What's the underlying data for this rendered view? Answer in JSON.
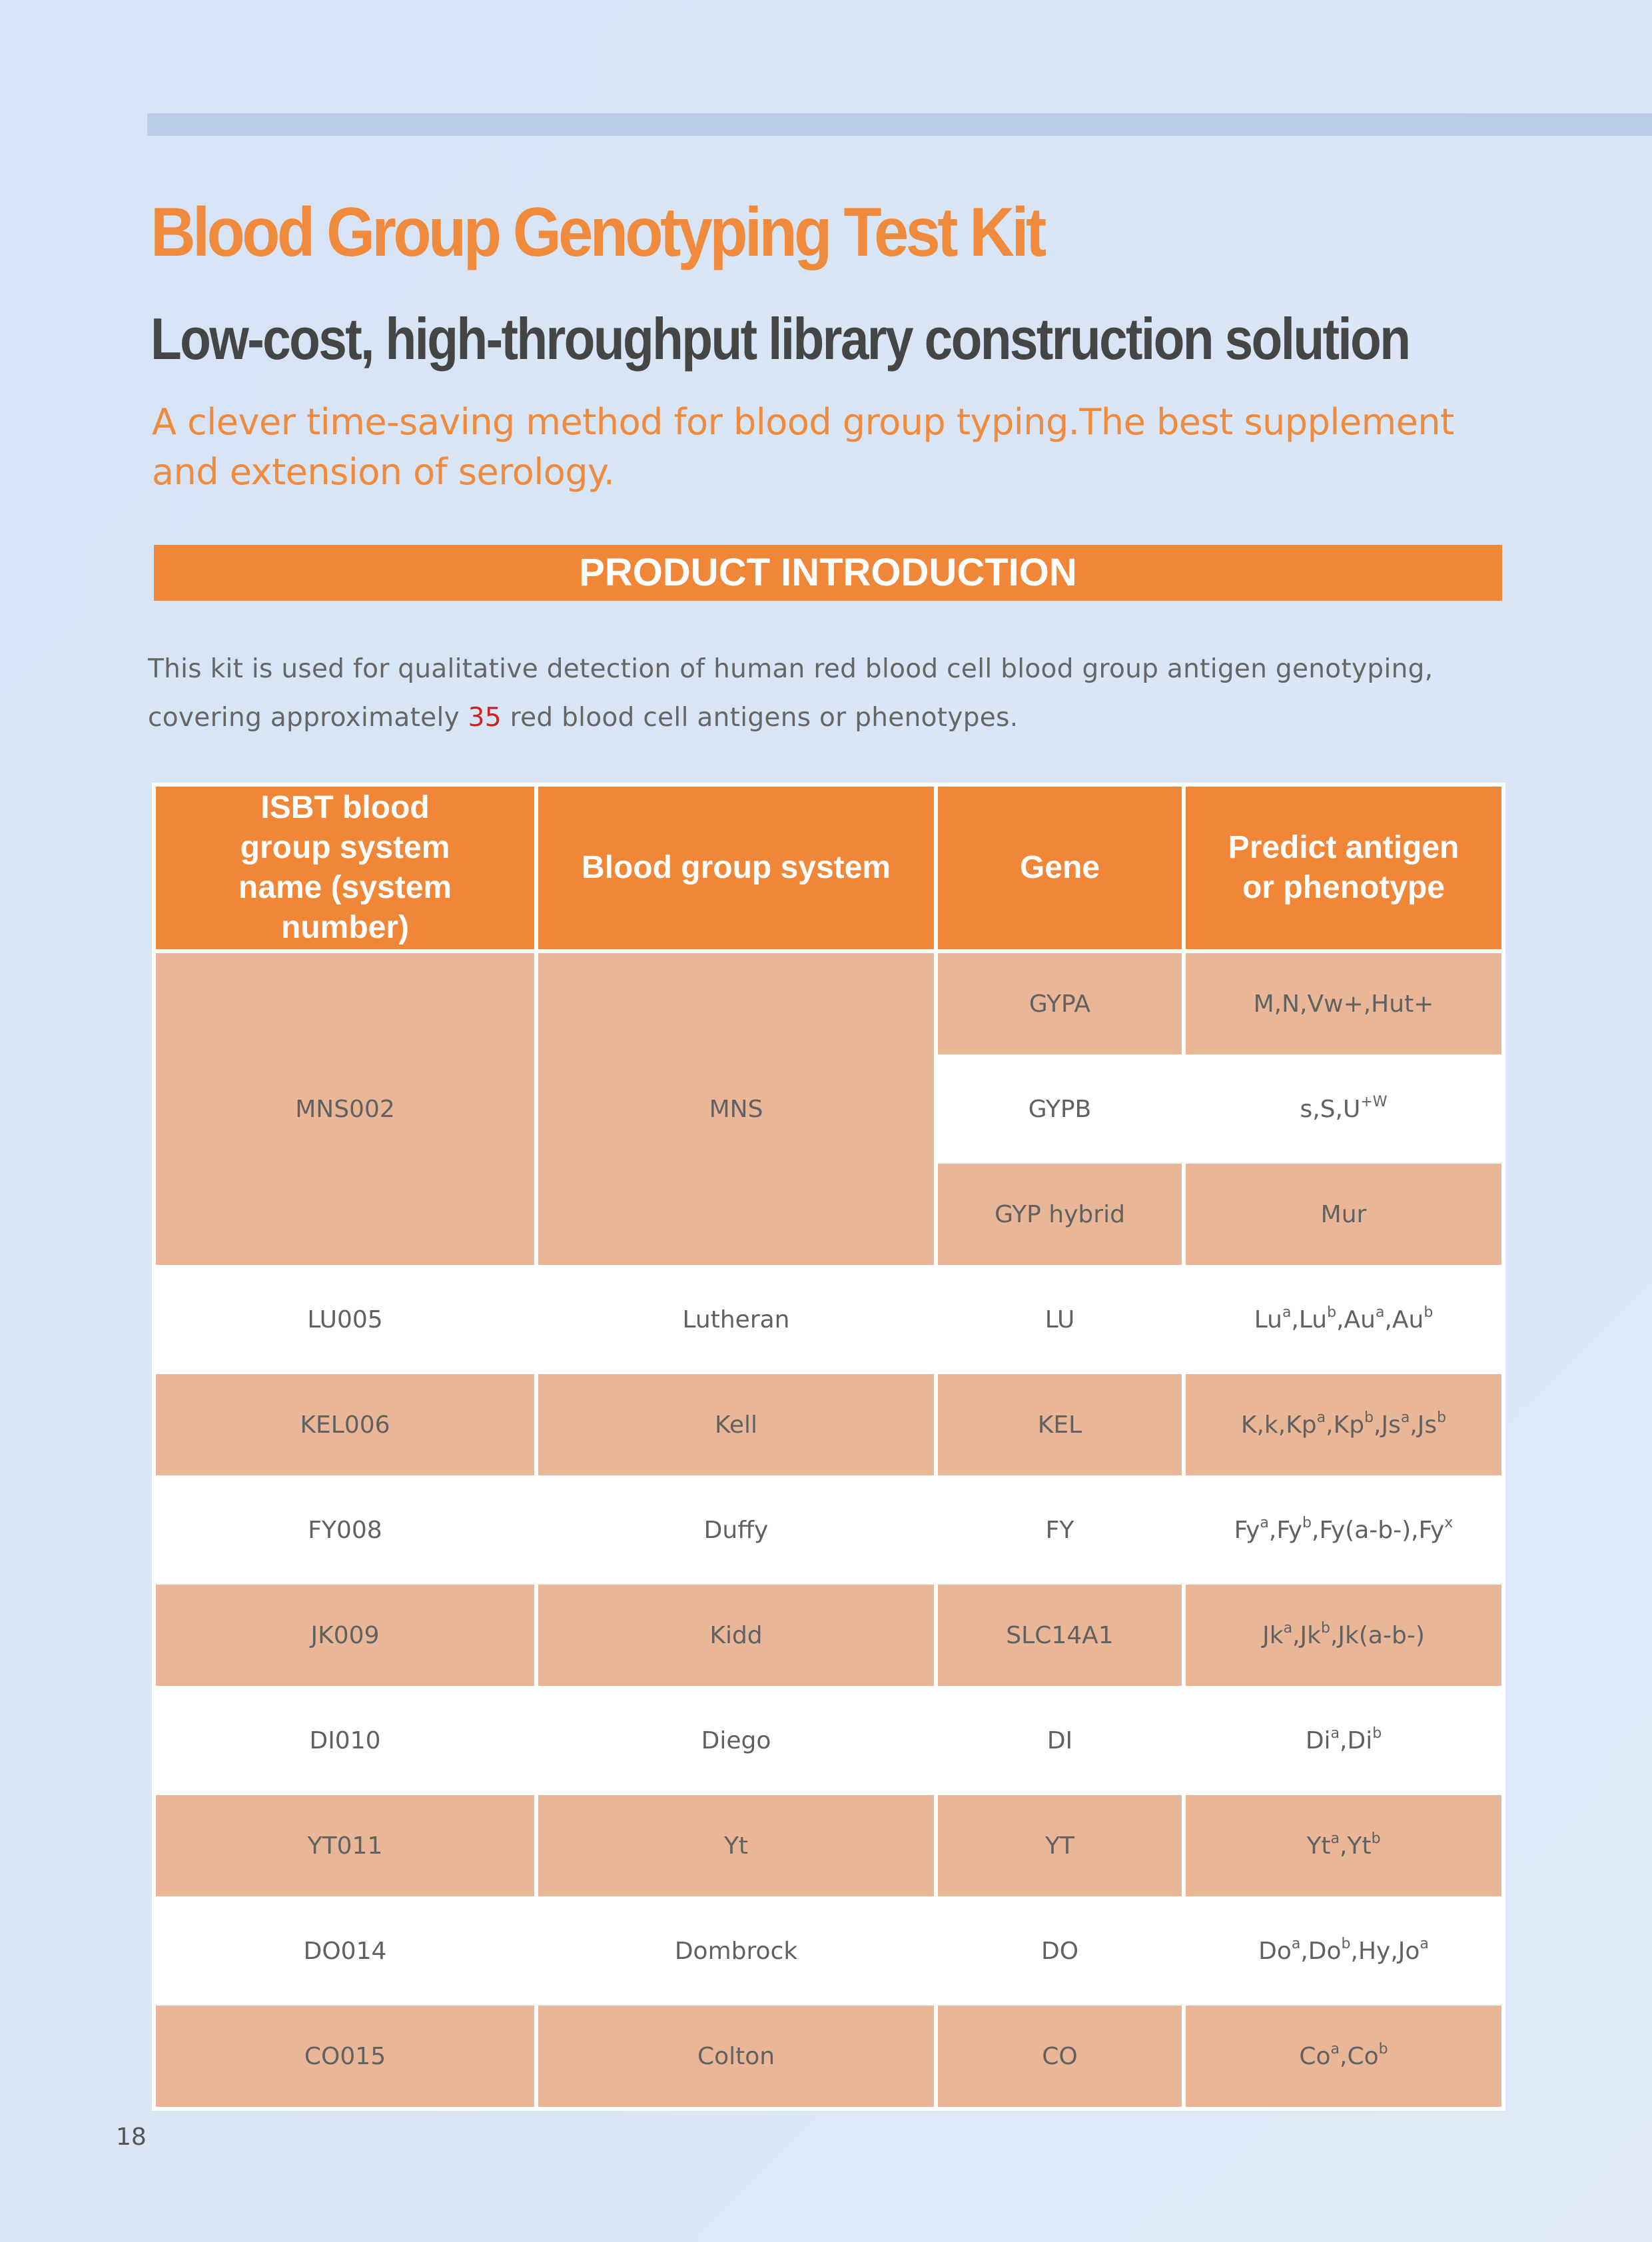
{
  "title": "Blood Group Genotyping Test Kit",
  "subtitle": "Low-cost, high-throughput library construction solution",
  "tagline": "A clever time-saving method for blood group typing.The best supplement and extension of serology.",
  "section_title": "PRODUCT INTRODUCTION",
  "intro": {
    "before": "This kit is used for qualitative detection of human red blood cell blood group antigen genotyping, covering approximately ",
    "highlight": "35",
    "after": " red blood cell antigens or phenotypes."
  },
  "colors": {
    "accent_orange": "#f08638",
    "row_orange": "#e9b797",
    "top_bar": "#bccde9",
    "highlight_red": "#d02020"
  },
  "table": {
    "headers": {
      "isbt": "ISBT blood group system name (system number)",
      "system": "Blood group system",
      "gene": "Gene",
      "phenotype": "Predict antigen or phenotype"
    },
    "mns": {
      "isbt": "MNS002",
      "system": "MNS",
      "genes": [
        {
          "gene": "GYPA",
          "phenotype": "M,N,Vw+,Hut+"
        },
        {
          "gene": "GYPB",
          "phenotype": "s,S,U+W"
        },
        {
          "gene": "GYP hybrid",
          "phenotype": "Mur"
        }
      ]
    },
    "rows": [
      {
        "isbt": "LU005",
        "system": "Lutheran",
        "gene": "LU",
        "phenotype": "Lua,Lub,Aua,Aub"
      },
      {
        "isbt": "KEL006",
        "system": "Kell",
        "gene": "KEL",
        "phenotype": "K,k,Kpa,Kpb,Jsa,Jsb"
      },
      {
        "isbt": "FY008",
        "system": "Duffy",
        "gene": "FY",
        "phenotype": "Fya,Fyb,Fy(a-b-),Fyx"
      },
      {
        "isbt": "JK009",
        "system": "Kidd",
        "gene": "SLC14A1",
        "phenotype": "Jka,Jkb,Jk(a-b-)"
      },
      {
        "isbt": "DI010",
        "system": "Diego",
        "gene": "DI",
        "phenotype": "Dia,Dib"
      },
      {
        "isbt": "YT011",
        "system": "Yt",
        "gene": "YT",
        "phenotype": "Yta,Ytb"
      },
      {
        "isbt": "DO014",
        "system": "Dombrock",
        "gene": "DO",
        "phenotype": "Doa,Dob,Hy,Joa"
      },
      {
        "isbt": "CO015",
        "system": "Colton",
        "gene": "CO",
        "phenotype": "Coa,Cob"
      }
    ]
  },
  "page_number": "18"
}
